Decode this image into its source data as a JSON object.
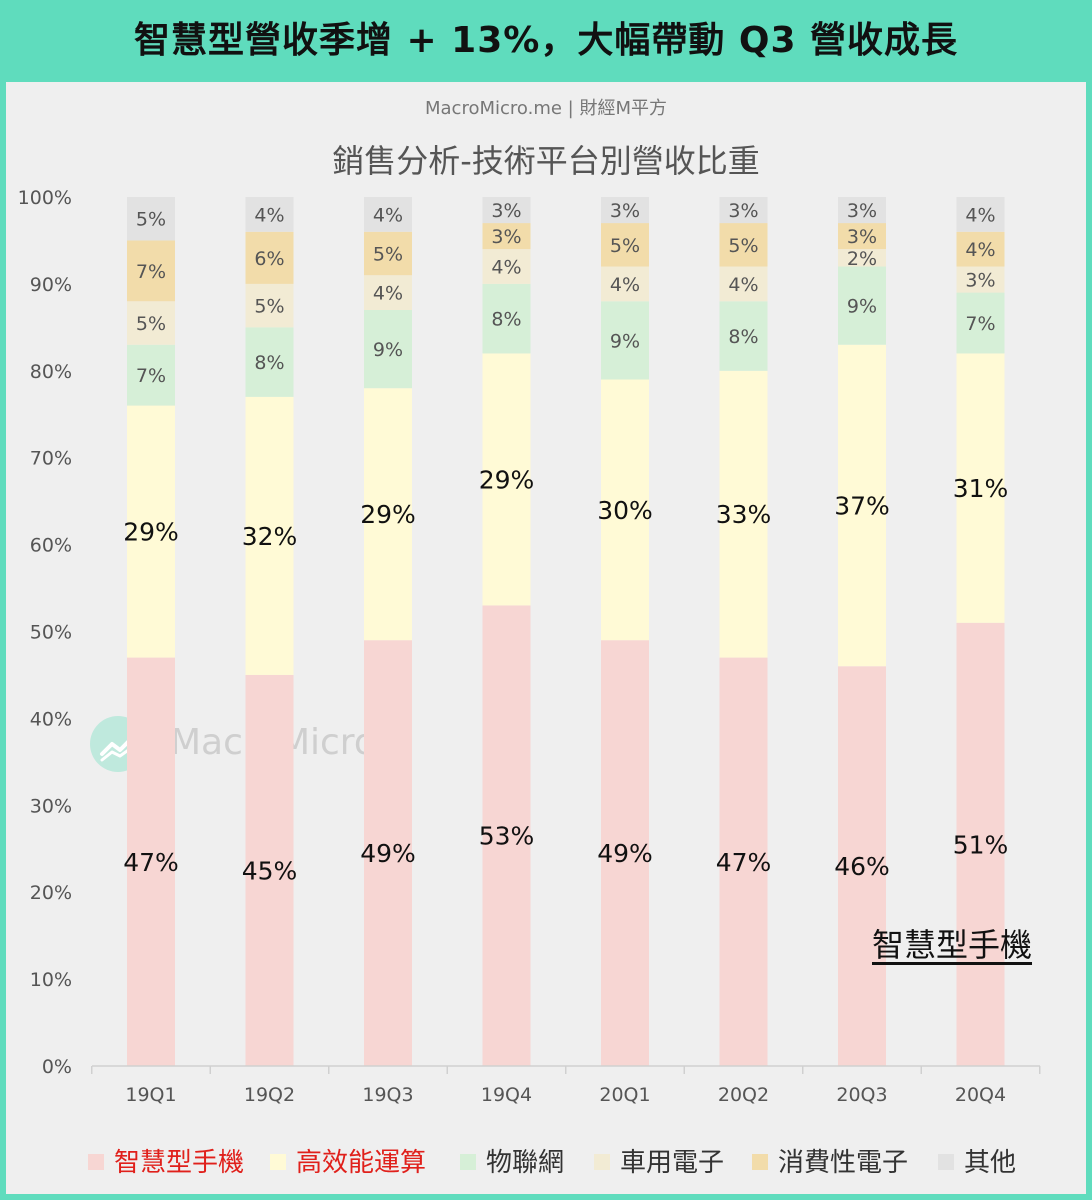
{
  "header": {
    "banner": "智慧型營收季增 + 13%，大幅帶動 Q3 營收成長"
  },
  "source": "MacroMicro.me | 財經M平方",
  "watermark": {
    "text": "MacroMicro",
    "icon": "macromicro-logo-icon"
  },
  "annotation": "智慧型手機",
  "chart_data": {
    "type": "bar",
    "stacked": true,
    "title": "銷售分析-技術平台別營收比重",
    "categories": [
      "19Q1",
      "19Q2",
      "19Q3",
      "19Q4",
      "20Q1",
      "20Q2",
      "20Q3",
      "20Q4"
    ],
    "ylim": [
      0,
      100
    ],
    "yticks": [
      "0%",
      "10%",
      "20%",
      "30%",
      "40%",
      "50%",
      "60%",
      "70%",
      "80%",
      "90%",
      "100%"
    ],
    "grid": false,
    "legend": "bottom",
    "series": [
      {
        "name": "智慧型手機",
        "color": "#f7d6d3",
        "legend_text_color": "#e0201b",
        "label_size": "large",
        "values": [
          47,
          45,
          49,
          53,
          49,
          47,
          46,
          51
        ]
      },
      {
        "name": "高效能運算",
        "color": "#fffad6",
        "legend_text_color": "#e0201b",
        "label_size": "large",
        "values": [
          29,
          32,
          29,
          29,
          30,
          33,
          37,
          31
        ]
      },
      {
        "name": "物聯網",
        "color": "#d6efd7",
        "legend_text_color": "#333333",
        "label_size": "small",
        "values": [
          7,
          8,
          9,
          8,
          9,
          8,
          9,
          7
        ]
      },
      {
        "name": "車用電子",
        "color": "#f2ebd4",
        "legend_text_color": "#333333",
        "label_size": "small",
        "values": [
          5,
          5,
          4,
          4,
          4,
          4,
          2,
          3
        ]
      },
      {
        "name": "消費性電子",
        "color": "#f2dcaa",
        "legend_text_color": "#333333",
        "label_size": "small",
        "values": [
          7,
          6,
          5,
          3,
          5,
          5,
          3,
          4
        ]
      },
      {
        "name": "其他",
        "color": "#e2e2e2",
        "legend_text_color": "#333333",
        "label_size": "small",
        "values": [
          5,
          4,
          4,
          3,
          3,
          3,
          3,
          4
        ]
      }
    ]
  }
}
